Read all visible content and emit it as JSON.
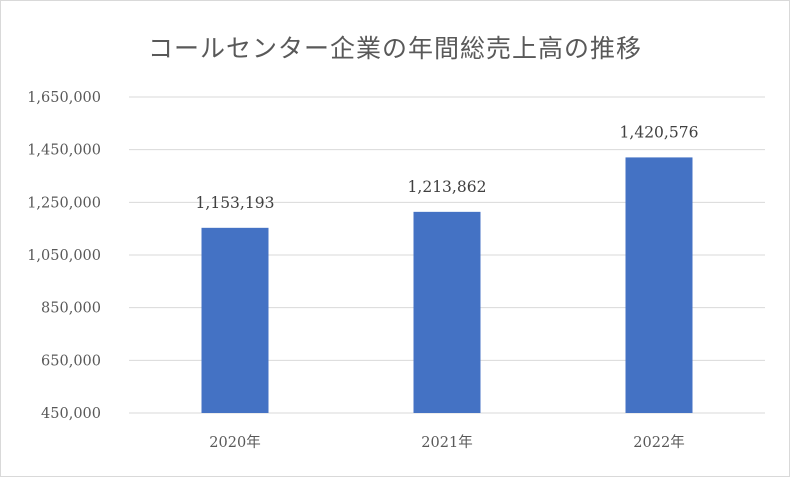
{
  "chart_data": {
    "type": "bar",
    "title": "コールセンター企業の年間総売上高の推移",
    "categories": [
      "2020年",
      "2021年",
      "2022年"
    ],
    "values": [
      1153193,
      1213862,
      1420576
    ],
    "data_labels": [
      "1,153,193",
      "1,213,862",
      "1,420,576"
    ],
    "ylim": [
      450000,
      1650000
    ],
    "yticks": [
      450000,
      650000,
      850000,
      1050000,
      1250000,
      1450000,
      1650000
    ],
    "ytick_labels": [
      "450,000",
      "650,000",
      "850,000",
      "1,050,000",
      "1,250,000",
      "1,450,000",
      "1,650,000"
    ],
    "grid": true,
    "legend": "none",
    "xlabel": "",
    "ylabel": "",
    "colors": {
      "bar": "#4472C4",
      "grid": "#d9d9d9",
      "axis": "#d9d9d9",
      "text": "#595959"
    }
  }
}
